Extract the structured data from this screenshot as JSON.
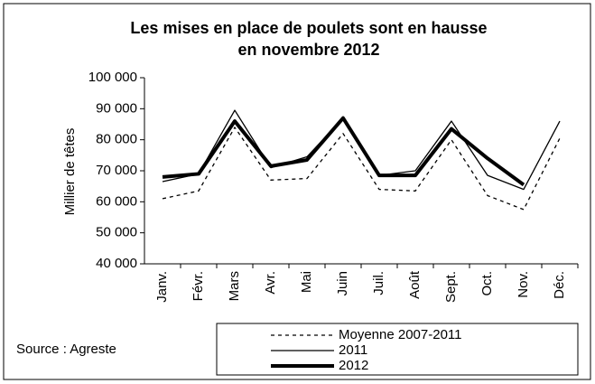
{
  "chart_data": {
    "type": "line",
    "title": [
      "Les mises en place de poulets sont en hausse",
      "en novembre 2012"
    ],
    "y_label": "Millier de têtes",
    "source": "Source : Agreste",
    "categories": [
      "Janv.",
      "Févr.",
      "Mars",
      "Avr.",
      "Mai",
      "Juin",
      "Juil.",
      "Août",
      "Sept.",
      "Oct.",
      "Nov.",
      "Déc."
    ],
    "series": [
      {
        "name": "Moyenne 2007-2011",
        "color": "#000000",
        "line_style": "dotted",
        "line_width": 1.3,
        "values": [
          61000,
          63500,
          84000,
          67000,
          67500,
          82000,
          64000,
          63500,
          80000,
          62000,
          57500,
          80500
        ]
      },
      {
        "name": "2011",
        "color": "#000000",
        "line_style": "solid",
        "line_width": 1.3,
        "values": [
          66500,
          69000,
          89500,
          71000,
          74500,
          87000,
          68500,
          70000,
          86000,
          68500,
          64000,
          86000
        ]
      },
      {
        "name": "2012",
        "color": "#000000",
        "line_style": "solid",
        "line_width": 4,
        "values": [
          68000,
          69000,
          86000,
          71500,
          73500,
          87000,
          68500,
          68500,
          83500,
          74000,
          65500,
          null
        ]
      }
    ],
    "ylim": [
      40000,
      100000
    ],
    "yticks": [
      {
        "value": 40000,
        "label": "40 000"
      },
      {
        "value": 50000,
        "label": "50 000"
      },
      {
        "value": 60000,
        "label": "60 000"
      },
      {
        "value": 70000,
        "label": "70 000"
      },
      {
        "value": 80000,
        "label": "80 000"
      },
      {
        "value": 90000,
        "label": "90 000"
      },
      {
        "value": 100000,
        "label": "100 000"
      }
    ],
    "grid": false
  }
}
